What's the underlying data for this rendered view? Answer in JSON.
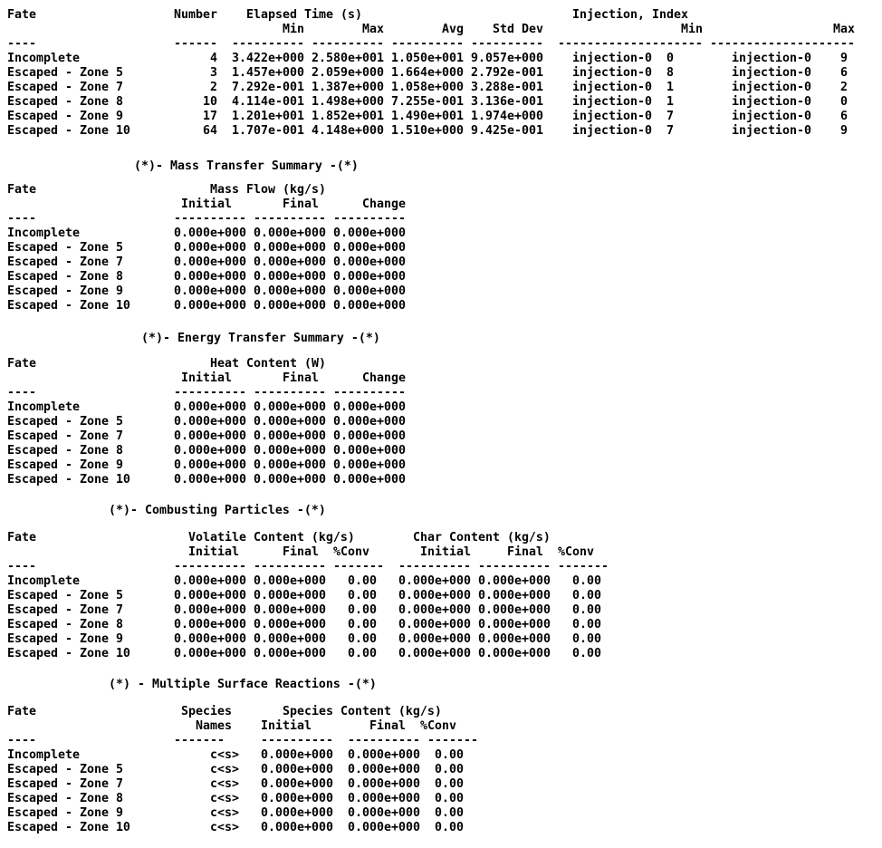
{
  "page": {
    "background": "#ffffff",
    "text_color": "#000000"
  },
  "rules": {
    "dash4": "----",
    "dash6": "------",
    "dash7": "-------",
    "dash10": "----------",
    "dash20": "--------------------"
  },
  "particle_summary": {
    "headers": {
      "fate": "Fate",
      "number": "Number",
      "elapsed_group": "Elapsed Time (s)",
      "injection_group": "Injection, Index",
      "min": "Min",
      "max": "Max",
      "avg": "Avg",
      "std_dev": "Std Dev",
      "inj_min": "Min",
      "inj_max": "Max"
    },
    "rows": [
      {
        "fate": "Incomplete",
        "number": "4",
        "min": "3.422e+000",
        "max": "2.580e+001",
        "avg": "1.050e+001",
        "std": "9.057e+000",
        "inj_min_name": "injection-0",
        "inj_min_idx": "0",
        "inj_max_name": "injection-0",
        "inj_max_idx": "9"
      },
      {
        "fate": "Escaped - Zone 5",
        "number": "3",
        "min": "1.457e+000",
        "max": "2.059e+000",
        "avg": "1.664e+000",
        "std": "2.792e-001",
        "inj_min_name": "injection-0",
        "inj_min_idx": "8",
        "inj_max_name": "injection-0",
        "inj_max_idx": "6"
      },
      {
        "fate": "Escaped - Zone 7",
        "number": "2",
        "min": "7.292e-001",
        "max": "1.387e+000",
        "avg": "1.058e+000",
        "std": "3.288e-001",
        "inj_min_name": "injection-0",
        "inj_min_idx": "1",
        "inj_max_name": "injection-0",
        "inj_max_idx": "2"
      },
      {
        "fate": "Escaped - Zone 8",
        "number": "10",
        "min": "4.114e-001",
        "max": "1.498e+000",
        "avg": "7.255e-001",
        "std": "3.136e-001",
        "inj_min_name": "injection-0",
        "inj_min_idx": "1",
        "inj_max_name": "injection-0",
        "inj_max_idx": "0"
      },
      {
        "fate": "Escaped - Zone 9",
        "number": "17",
        "min": "1.201e+001",
        "max": "1.852e+001",
        "avg": "1.490e+001",
        "std": "1.974e+000",
        "inj_min_name": "injection-0",
        "inj_min_idx": "7",
        "inj_max_name": "injection-0",
        "inj_max_idx": "6"
      },
      {
        "fate": "Escaped - Zone 10",
        "number": "64",
        "min": "1.707e-001",
        "max": "4.148e+000",
        "avg": "1.510e+000",
        "std": "9.425e-001",
        "inj_min_name": "injection-0",
        "inj_min_idx": "7",
        "inj_max_name": "injection-0",
        "inj_max_idx": "9"
      }
    ]
  },
  "mass_transfer": {
    "title": "(*)- Mass Transfer Summary -(*)",
    "headers": {
      "fate": "Fate",
      "group": "Mass Flow (kg/s)",
      "initial": "Initial",
      "final": "Final",
      "change": "Change"
    },
    "rows": [
      {
        "fate": "Incomplete",
        "initial": "0.000e+000",
        "final": "0.000e+000",
        "change": "0.000e+000"
      },
      {
        "fate": "Escaped - Zone 5",
        "initial": "0.000e+000",
        "final": "0.000e+000",
        "change": "0.000e+000"
      },
      {
        "fate": "Escaped - Zone 7",
        "initial": "0.000e+000",
        "final": "0.000e+000",
        "change": "0.000e+000"
      },
      {
        "fate": "Escaped - Zone 8",
        "initial": "0.000e+000",
        "final": "0.000e+000",
        "change": "0.000e+000"
      },
      {
        "fate": "Escaped - Zone 9",
        "initial": "0.000e+000",
        "final": "0.000e+000",
        "change": "0.000e+000"
      },
      {
        "fate": "Escaped - Zone 10",
        "initial": "0.000e+000",
        "final": "0.000e+000",
        "change": "0.000e+000"
      }
    ]
  },
  "energy_transfer": {
    "title": "(*)- Energy Transfer Summary -(*)",
    "headers": {
      "fate": "Fate",
      "group": "Heat Content (W)",
      "initial": "Initial",
      "final": "Final",
      "change": "Change"
    },
    "rows": [
      {
        "fate": "Incomplete",
        "initial": "0.000e+000",
        "final": "0.000e+000",
        "change": "0.000e+000"
      },
      {
        "fate": "Escaped - Zone 5",
        "initial": "0.000e+000",
        "final": "0.000e+000",
        "change": "0.000e+000"
      },
      {
        "fate": "Escaped - Zone 7",
        "initial": "0.000e+000",
        "final": "0.000e+000",
        "change": "0.000e+000"
      },
      {
        "fate": "Escaped - Zone 8",
        "initial": "0.000e+000",
        "final": "0.000e+000",
        "change": "0.000e+000"
      },
      {
        "fate": "Escaped - Zone 9",
        "initial": "0.000e+000",
        "final": "0.000e+000",
        "change": "0.000e+000"
      },
      {
        "fate": "Escaped - Zone 10",
        "initial": "0.000e+000",
        "final": "0.000e+000",
        "change": "0.000e+000"
      }
    ]
  },
  "combusting_particles": {
    "title": "(*)- Combusting Particles -(*)",
    "headers": {
      "fate": "Fate",
      "volatile_group": "Volatile Content (kg/s)",
      "char_group": "Char Content (kg/s)",
      "initial": "Initial",
      "final": "Final",
      "conv": "%Conv"
    },
    "rows": [
      {
        "fate": "Incomplete",
        "v_initial": "0.000e+000",
        "v_final": "0.000e+000",
        "v_conv": "0.00",
        "c_initial": "0.000e+000",
        "c_final": "0.000e+000",
        "c_conv": "0.00"
      },
      {
        "fate": "Escaped - Zone 5",
        "v_initial": "0.000e+000",
        "v_final": "0.000e+000",
        "v_conv": "0.00",
        "c_initial": "0.000e+000",
        "c_final": "0.000e+000",
        "c_conv": "0.00"
      },
      {
        "fate": "Escaped - Zone 7",
        "v_initial": "0.000e+000",
        "v_final": "0.000e+000",
        "v_conv": "0.00",
        "c_initial": "0.000e+000",
        "c_final": "0.000e+000",
        "c_conv": "0.00"
      },
      {
        "fate": "Escaped - Zone 8",
        "v_initial": "0.000e+000",
        "v_final": "0.000e+000",
        "v_conv": "0.00",
        "c_initial": "0.000e+000",
        "c_final": "0.000e+000",
        "c_conv": "0.00"
      },
      {
        "fate": "Escaped - Zone 9",
        "v_initial": "0.000e+000",
        "v_final": "0.000e+000",
        "v_conv": "0.00",
        "c_initial": "0.000e+000",
        "c_final": "0.000e+000",
        "c_conv": "0.00"
      },
      {
        "fate": "Escaped - Zone 10",
        "v_initial": "0.000e+000",
        "v_final": "0.000e+000",
        "v_conv": "0.00",
        "c_initial": "0.000e+000",
        "c_final": "0.000e+000",
        "c_conv": "0.00"
      }
    ]
  },
  "surface_reactions": {
    "title": "(*) - Multiple Surface Reactions -(*)",
    "headers": {
      "fate": "Fate",
      "species": "Species",
      "names": "Names",
      "content_group": "Species Content (kg/s)",
      "initial": "Initial",
      "final": "Final",
      "conv": "%Conv"
    },
    "rows": [
      {
        "fate": "Incomplete",
        "species": "c<s>",
        "initial": "0.000e+000",
        "final": "0.000e+000",
        "conv": "0.00"
      },
      {
        "fate": "Escaped - Zone 5",
        "species": "c<s>",
        "initial": "0.000e+000",
        "final": "0.000e+000",
        "conv": "0.00"
      },
      {
        "fate": "Escaped - Zone 7",
        "species": "c<s>",
        "initial": "0.000e+000",
        "final": "0.000e+000",
        "conv": "0.00"
      },
      {
        "fate": "Escaped - Zone 8",
        "species": "c<s>",
        "initial": "0.000e+000",
        "final": "0.000e+000",
        "conv": "0.00"
      },
      {
        "fate": "Escaped - Zone 9",
        "species": "c<s>",
        "initial": "0.000e+000",
        "final": "0.000e+000",
        "conv": "0.00"
      },
      {
        "fate": "Escaped - Zone 10",
        "species": "c<s>",
        "initial": "0.000e+000",
        "final": "0.000e+000",
        "conv": "0.00"
      }
    ]
  }
}
